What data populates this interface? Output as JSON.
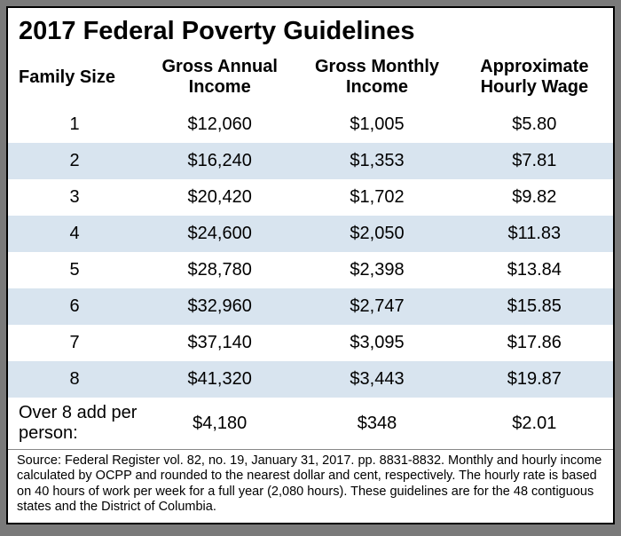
{
  "title": "2017 Federal Poverty Guidelines",
  "table": {
    "type": "table",
    "columns": [
      "Family Size",
      "Gross Annual Income",
      "Gross Monthly Income",
      "Approximate Hourly Wage"
    ],
    "rows": [
      {
        "family_size": "1",
        "annual": "$12,060",
        "monthly": "$1,005",
        "hourly": "$5.80",
        "striped": false
      },
      {
        "family_size": "2",
        "annual": "$16,240",
        "monthly": "$1,353",
        "hourly": "$7.81",
        "striped": true
      },
      {
        "family_size": "3",
        "annual": "$20,420",
        "monthly": "$1,702",
        "hourly": "$9.82",
        "striped": false
      },
      {
        "family_size": "4",
        "annual": "$24,600",
        "monthly": "$2,050",
        "hourly": "$11.83",
        "striped": true
      },
      {
        "family_size": "5",
        "annual": "$28,780",
        "monthly": "$2,398",
        "hourly": "$13.84",
        "striped": false
      },
      {
        "family_size": "6",
        "annual": "$32,960",
        "monthly": "$2,747",
        "hourly": "$15.85",
        "striped": true
      },
      {
        "family_size": "7",
        "annual": "$37,140",
        "monthly": "$3,095",
        "hourly": "$17.86",
        "striped": false
      },
      {
        "family_size": "8",
        "annual": "$41,320",
        "monthly": "$3,443",
        "hourly": "$19.87",
        "striped": true
      }
    ],
    "over_row": {
      "label": "Over 8 add per person:",
      "annual": "$4,180",
      "monthly": "$348",
      "hourly": "$2.01"
    },
    "stripe_color": "#d8e4ef",
    "background_color": "#ffffff",
    "text_color": "#000000",
    "header_fontsize": 20,
    "cell_fontsize": 20,
    "source_fontsize": 14.5
  },
  "source_text": "Source: Federal Register vol. 82, no. 19, January 31, 2017. pp. 8831-8832. Monthly and hourly income calculated by OCPP and rounded to the nearest dollar and cent, respectively. The hourly rate is based on 40 hours of work per week for a full year (2,080 hours). These guidelines are for the 48 contiguous states and the District of Columbia."
}
